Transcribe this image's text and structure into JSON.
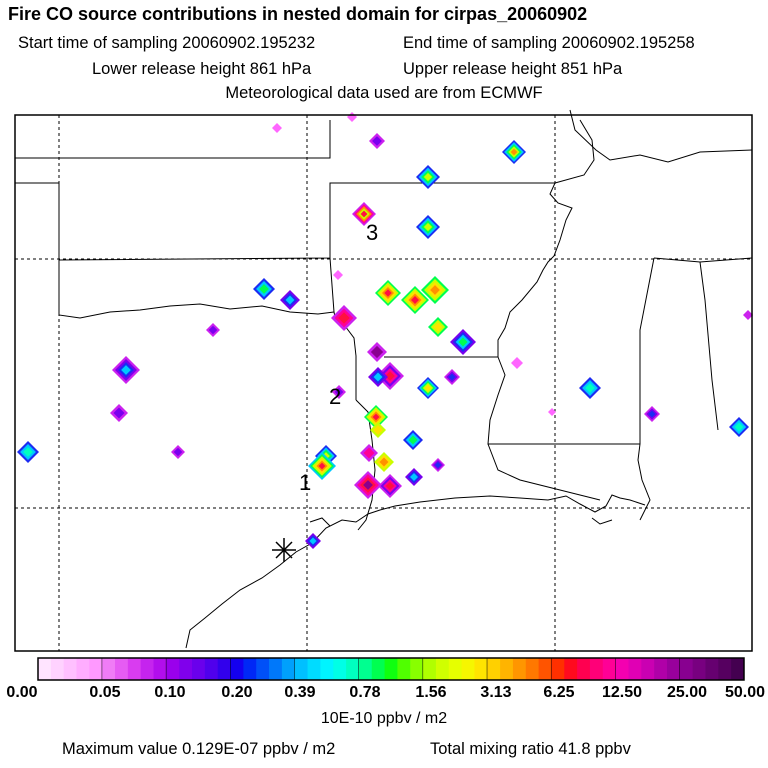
{
  "header": {
    "title": "Fire CO source contributions in nested domain for cirpas_20060902",
    "start_time": "Start time of sampling 20060902.195232",
    "end_time": "End time of sampling 20060902.195258",
    "lower_release": "Lower release height  861 hPa",
    "upper_release": "Upper release height  851 hPa",
    "met_data": "Meteorological data used are from ECMWF"
  },
  "map": {
    "site_labels": [
      "1",
      "2",
      "3"
    ],
    "release_marker": "asterisk-icon",
    "colors": {
      "frame": "#000000",
      "background": "#ffffff"
    }
  },
  "colorbar": {
    "tick_labels": [
      "0.00",
      "0.05",
      "0.10",
      "0.20",
      "0.39",
      "0.78",
      "1.56",
      "3.13",
      "6.25",
      "12.50",
      "25.00",
      "50.00"
    ],
    "colors": [
      [
        "#ffe4ff",
        "#ffd2ff",
        "#ffc0ff",
        "#ffadff",
        "#ff99ff"
      ],
      [
        "#f07cf6",
        "#e65cf3",
        "#d93cf0",
        "#c524ee",
        "#b20eec"
      ],
      [
        "#9a00ec",
        "#8000ec",
        "#6a00ec",
        "#5000ec",
        "#3200ec"
      ],
      [
        "#1400f0",
        "#0028f6",
        "#0050f8",
        "#0078fa",
        "#00a0fc"
      ],
      [
        "#00c0ff",
        "#00dcff",
        "#00f4ff",
        "#00ffe6",
        "#00ffc0"
      ],
      [
        "#00ff90",
        "#00ff50",
        "#10ff10",
        "#50ff00",
        "#88ff00"
      ],
      [
        "#b0ff00",
        "#d0ff00",
        "#e6ff00",
        "#f6f600",
        "#ffe400"
      ],
      [
        "#ffd000",
        "#ffb400",
        "#ff9600",
        "#ff7800",
        "#ff5400"
      ],
      [
        "#ff3000",
        "#ff0a1e",
        "#ff0050",
        "#ff0078",
        "#ff0096"
      ],
      [
        "#f400b0",
        "#e000b4",
        "#ca00b2",
        "#b000a8",
        "#98009c"
      ],
      [
        "#880090",
        "#780080",
        "#660070",
        "#560060",
        "#440050"
      ]
    ],
    "unit": "10E-10 ppbv / m2"
  },
  "footer": {
    "max_value": "Maximum value  0.129E-07 ppbv / m2",
    "total_mixing": "Total mixing ratio       41.8 ppbv"
  }
}
